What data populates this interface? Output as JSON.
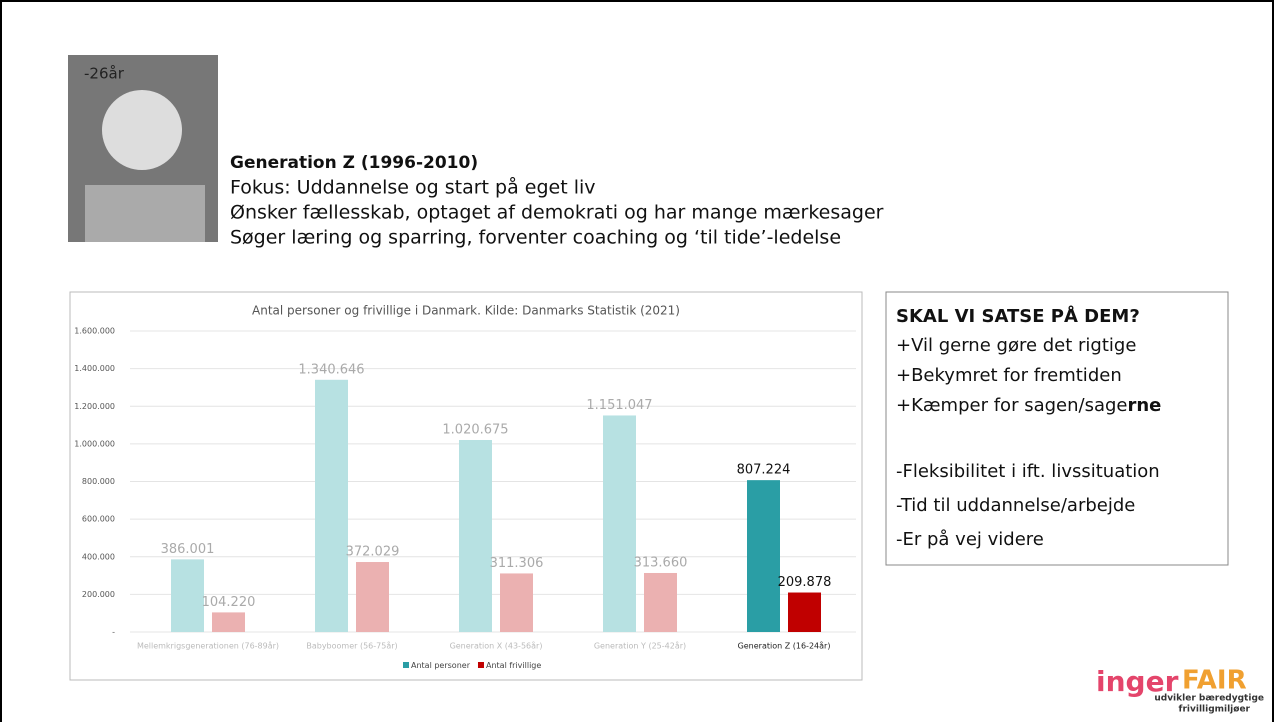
{
  "header": {
    "photo_caption": "-26år",
    "title": "Generation Z (1996-2010)",
    "lines": [
      "Fokus: Uddannelse og start på eget liv",
      "Ønsker fællesskab, optaget af demokrati og har mange mærkesager",
      "Søger læring og sparring, forventer coaching og ‘til tide’-ledelse"
    ]
  },
  "chart_data": {
    "type": "bar",
    "title": "Antal personer og frivillige i Danmark. Kilde: Danmarks Statistik (2021)",
    "categories": [
      "Mellemkrigsgenerationen (76-89år)",
      "Babyboomer (56-75år)",
      "Generation X (43-56år)",
      "Generation Y (25-42år)",
      "Generation Z (16-24år)"
    ],
    "series": [
      {
        "name": "Antal personer",
        "color": "#2a9ea5",
        "point_colors": [
          "#b7e1e2",
          "#b7e1e2",
          "#b7e1e2",
          "#b7e1e2",
          "#2a9ea5"
        ],
        "values": [
          386001,
          1340646,
          1020675,
          1151047,
          807224
        ],
        "value_labels": [
          "386.001",
          "1.340.646",
          "1.020.675",
          "1.151.047",
          "807.224"
        ]
      },
      {
        "name": "Antal frivillige",
        "color": "#c00000",
        "point_colors": [
          "#ebb1b1",
          "#ebb1b1",
          "#ebb1b1",
          "#ebb1b1",
          "#c00000"
        ],
        "values": [
          104220,
          372029,
          311306,
          313660,
          209878
        ],
        "value_labels": [
          "104.220",
          "372.029",
          "311.306",
          "313.660",
          "209.878"
        ]
      }
    ],
    "ylim": [
      0,
      1600000
    ],
    "yticks": [
      {
        "value": 0,
        "label": "-"
      },
      {
        "value": 200000,
        "label": "200.000"
      },
      {
        "value": 400000,
        "label": "400.000"
      },
      {
        "value": 600000,
        "label": "600.000"
      },
      {
        "value": 800000,
        "label": "800.000"
      },
      {
        "value": 1000000,
        "label": "1.000.000"
      },
      {
        "value": 1200000,
        "label": "1.200.000"
      },
      {
        "value": 1400000,
        "label": "1.400.000"
      },
      {
        "value": 1600000,
        "label": "1.600.000"
      }
    ],
    "grid": true,
    "legend": "bottom"
  },
  "textbox": {
    "heading": "SKAL VI SATSE PÅ DEM?",
    "pros": [
      "+Vil gerne gøre det rigtige",
      "+Bekymret for fremtiden"
    ],
    "pro_last": [
      "+Kæmper for sagen/sage",
      "rne"
    ],
    "cons": [
      "-Fleksibilitet i ift. livssituation",
      "-Tid til uddannelse/arbejde",
      "-Er på vej videre"
    ]
  },
  "logo": {
    "word1": "inger",
    "word2": "FAIR",
    "tagline1": "udvikler bæredygtige",
    "tagline2": "frivilligmiljøer"
  }
}
